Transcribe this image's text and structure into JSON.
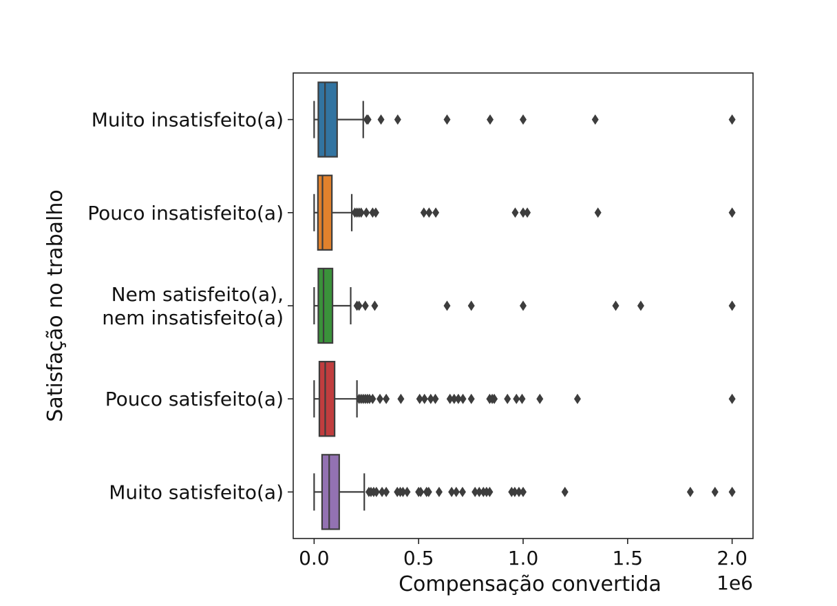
{
  "chart_data": {
    "type": "boxplot",
    "orientation": "horizontal",
    "xlabel": "Compensação convertida",
    "ylabel": "Satisfação no trabalho",
    "x_offset_label": "1e6",
    "x_tick_values": [
      0,
      500000,
      1000000,
      1500000,
      2000000
    ],
    "x_tick_labels": [
      "0.0",
      "0.5",
      "1.0",
      "1.5",
      "2.0"
    ],
    "xlim": [
      -100000,
      2100000
    ],
    "grid": false,
    "categories": [
      "Muito insatisfeito(a)",
      "Pouco insatisfeito(a)",
      "Nem satisfeito(a), nem insatisfeito(a)",
      "Pouco satisfeito(a)",
      "Muito satisfeito(a)"
    ],
    "category_label_lines": [
      [
        "Muito insatisfeito(a)"
      ],
      [
        "Pouco insatisfeito(a)"
      ],
      [
        "Nem satisfeito(a),",
        "nem insatisfeito(a)"
      ],
      [
        "Pouco satisfeito(a)"
      ],
      [
        "Muito satisfeito(a)"
      ]
    ],
    "boxes": [
      {
        "category": "Muito insatisfeito(a)",
        "color": "#3274A1",
        "whisker_low": 0,
        "q1": 20000,
        "median": 52000,
        "q3": 110000,
        "whisker_high": 235000,
        "outliers": [
          252000,
          258000,
          320000,
          400000,
          636000,
          842000,
          1000000,
          1345000,
          2000000
        ]
      },
      {
        "category": "Pouco insatisfeito(a)",
        "color": "#E1812C",
        "whisker_low": 0,
        "q1": 18000,
        "median": 40000,
        "q3": 85000,
        "whisker_high": 180000,
        "outliers": [
          195000,
          205000,
          215000,
          225000,
          250000,
          280000,
          295000,
          525000,
          550000,
          582000,
          962000,
          1000000,
          1020000,
          1358000,
          2000000
        ]
      },
      {
        "category": "Nem satisfeito(a), nem insatisfeito(a)",
        "color": "#3A923A",
        "whisker_low": 0,
        "q1": 20000,
        "median": 45000,
        "q3": 88000,
        "whisker_high": 175000,
        "outliers": [
          205000,
          215000,
          245000,
          290000,
          636000,
          752000,
          1000000,
          1443000,
          1563000,
          2000000
        ]
      },
      {
        "category": "Pouco satisfeito(a)",
        "color": "#C03D3E",
        "whisker_low": 0,
        "q1": 25000,
        "median": 53000,
        "q3": 98000,
        "whisker_high": 205000,
        "outliers": [
          215000,
          225000,
          235000,
          245000,
          255000,
          265000,
          280000,
          315000,
          345000,
          415000,
          505000,
          528000,
          558000,
          580000,
          650000,
          670000,
          690000,
          712000,
          752000,
          840000,
          852000,
          862000,
          925000,
          968000,
          995000,
          1080000,
          1260000,
          2000000
        ]
      },
      {
        "category": "Muito satisfeito(a)",
        "color": "#9372B2",
        "whisker_low": 0,
        "q1": 38000,
        "median": 72000,
        "q3": 120000,
        "whisker_high": 240000,
        "outliers": [
          262000,
          272000,
          285000,
          298000,
          325000,
          345000,
          398000,
          412000,
          425000,
          445000,
          500000,
          510000,
          538000,
          548000,
          598000,
          658000,
          680000,
          710000,
          770000,
          790000,
          810000,
          825000,
          840000,
          945000,
          960000,
          980000,
          1000000,
          1200000,
          1800000,
          1918000,
          2000000
        ]
      }
    ]
  }
}
